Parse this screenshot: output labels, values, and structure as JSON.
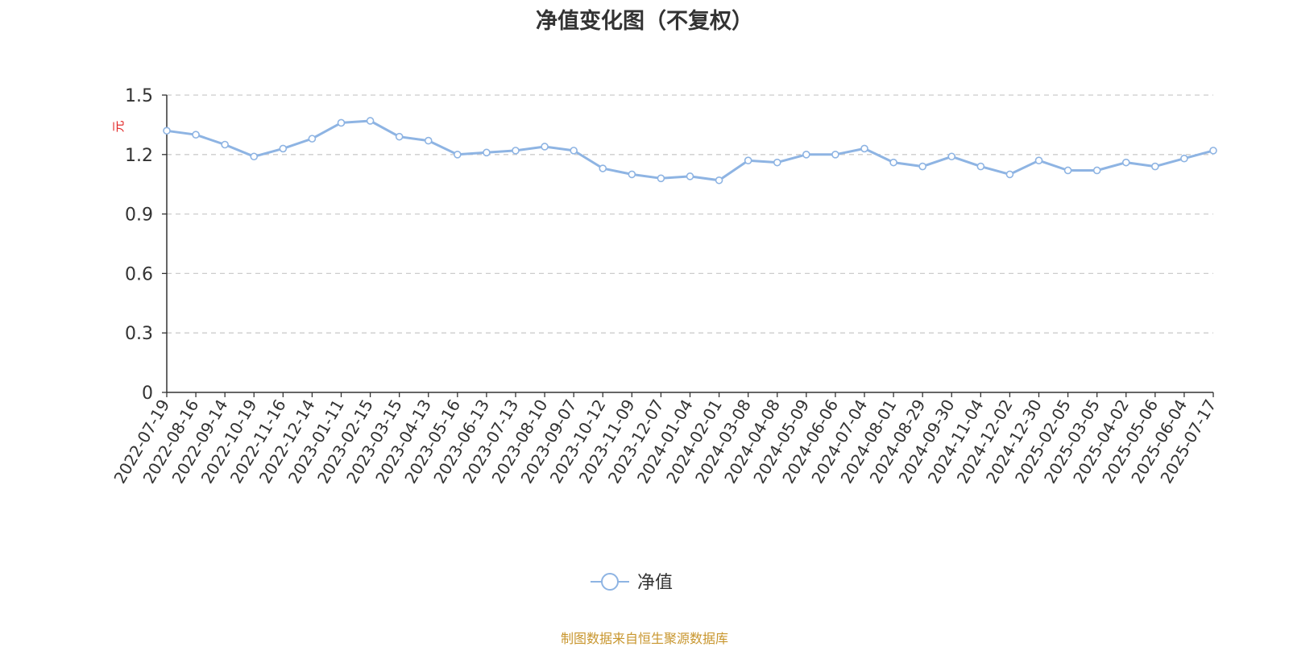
{
  "title": "净值变化图（不复权）",
  "source_note": "制图数据来自恒生聚源数据库",
  "colors": {
    "line": "#8eb4e3",
    "unit_label": "#e02020",
    "source": "#c8962e",
    "axis": "#333333",
    "grid": "#cccccc"
  },
  "chart_data": {
    "type": "line",
    "title": "净值变化图（不复权）",
    "ylabel": "元",
    "ylim": [
      0,
      1.5
    ],
    "yticks": [
      "0",
      "0.3",
      "0.6",
      "0.9",
      "1.2",
      "1.5"
    ],
    "grid": "horizontal dashed",
    "legend_position": "bottom-center",
    "categories": [
      "2022-07-19",
      "2022-08-16",
      "2022-09-14",
      "2022-10-19",
      "2022-11-16",
      "2022-12-14",
      "2023-01-11",
      "2023-02-15",
      "2023-03-15",
      "2023-04-13",
      "2023-05-16",
      "2023-06-13",
      "2023-07-13",
      "2023-08-10",
      "2023-09-07",
      "2023-10-12",
      "2023-11-09",
      "2023-12-07",
      "2024-01-04",
      "2024-02-01",
      "2024-03-08",
      "2024-04-08",
      "2024-05-09",
      "2024-06-06",
      "2024-07-04",
      "2024-08-01",
      "2024-08-29",
      "2024-09-30",
      "2024-11-04",
      "2024-12-02",
      "2024-12-30",
      "2025-02-05",
      "2025-03-05",
      "2025-04-02",
      "2025-05-06",
      "2025-06-04",
      "2025-07-17"
    ],
    "series": [
      {
        "name": "净值",
        "values": [
          1.32,
          1.3,
          1.25,
          1.19,
          1.23,
          1.28,
          1.36,
          1.37,
          1.29,
          1.27,
          1.2,
          1.21,
          1.22,
          1.24,
          1.22,
          1.13,
          1.1,
          1.08,
          1.09,
          1.07,
          1.17,
          1.16,
          1.2,
          1.2,
          1.23,
          1.16,
          1.14,
          1.19,
          1.14,
          1.1,
          1.17,
          1.12,
          1.12,
          1.16,
          1.14,
          1.18,
          1.22
        ]
      }
    ]
  }
}
